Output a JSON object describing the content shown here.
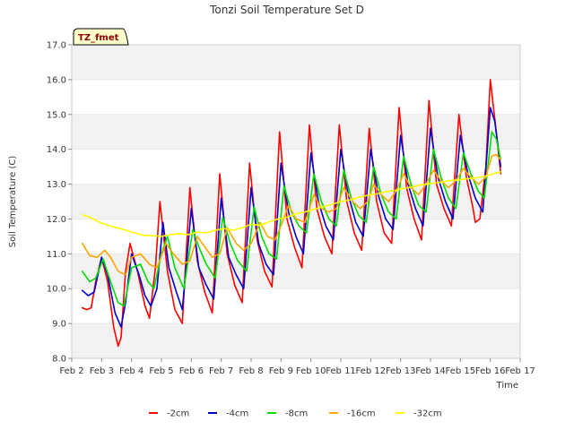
{
  "chart_data": {
    "type": "line",
    "title": "Tonzi Soil Temperature Set D",
    "xlabel": "Time",
    "ylabel": "Soil Temperature (C)",
    "site_label": "TZ_fmet",
    "xlim": [
      2,
      17
    ],
    "ylim": [
      8.0,
      17.0
    ],
    "x_ticks": [
      "Feb 2",
      "Feb 3",
      "Feb 4",
      "Feb 5",
      "Feb 6",
      "Feb 7",
      "Feb 8",
      "Feb 9",
      "Feb 10",
      "Feb 11",
      "Feb 12",
      "Feb 13",
      "Feb 14",
      "Feb 15",
      "Feb 16",
      "Feb 17"
    ],
    "y_ticks": [
      "8.0",
      "9.0",
      "10.0",
      "11.0",
      "12.0",
      "13.0",
      "14.0",
      "15.0",
      "16.0",
      "17.0"
    ],
    "grid": "horizontal bands",
    "legend_position": "bottom",
    "series": [
      {
        "name": "-2cm",
        "color": "#ff0000",
        "x": [
          2.35,
          2.5,
          2.65,
          2.8,
          3.0,
          3.2,
          3.4,
          3.55,
          3.65,
          3.8,
          3.95,
          4.2,
          4.45,
          4.6,
          4.8,
          4.95,
          5.2,
          5.45,
          5.7,
          5.95,
          6.2,
          6.45,
          6.7,
          6.95,
          7.2,
          7.45,
          7.7,
          7.95,
          8.2,
          8.45,
          8.7,
          8.95,
          9.2,
          9.45,
          9.7,
          9.95,
          10.2,
          10.45,
          10.7,
          10.95,
          11.2,
          11.45,
          11.7,
          11.95,
          12.2,
          12.45,
          12.7,
          12.95,
          13.2,
          13.45,
          13.7,
          13.95,
          14.2,
          14.45,
          14.7,
          14.95,
          15.2,
          15.4,
          15.5,
          15.65,
          15.85,
          16.0,
          16.2,
          16.35
        ],
        "y": [
          9.45,
          9.4,
          9.45,
          10.2,
          10.9,
          10.2,
          8.9,
          8.35,
          8.6,
          10.5,
          11.3,
          10.5,
          9.5,
          9.15,
          10.6,
          12.5,
          10.5,
          9.4,
          9.0,
          12.9,
          10.8,
          9.9,
          9.3,
          13.3,
          11.0,
          10.1,
          9.6,
          13.6,
          11.4,
          10.5,
          10.05,
          14.5,
          12.0,
          11.2,
          10.6,
          14.7,
          12.3,
          11.5,
          11.0,
          14.7,
          12.5,
          11.6,
          11.1,
          14.6,
          12.5,
          11.6,
          11.3,
          15.2,
          12.9,
          12.0,
          11.4,
          15.4,
          13.0,
          12.3,
          11.8,
          15.0,
          13.2,
          12.4,
          11.9,
          12.0,
          13.5,
          16.0,
          14.5,
          13.3
        ]
      },
      {
        "name": "-4cm",
        "color": "#0000cc",
        "x": [
          2.35,
          2.55,
          2.75,
          3.0,
          3.2,
          3.45,
          3.65,
          3.8,
          4.0,
          4.25,
          4.45,
          4.65,
          4.85,
          5.05,
          5.25,
          5.5,
          5.7,
          6.0,
          6.25,
          6.5,
          6.75,
          7.0,
          7.25,
          7.5,
          7.75,
          8.0,
          8.25,
          8.5,
          8.75,
          9.0,
          9.25,
          9.5,
          9.75,
          10.0,
          10.25,
          10.5,
          10.75,
          11.0,
          11.25,
          11.5,
          11.75,
          12.0,
          12.25,
          12.5,
          12.75,
          13.0,
          13.25,
          13.5,
          13.75,
          14.0,
          14.25,
          14.5,
          14.75,
          15.0,
          15.25,
          15.5,
          15.75,
          16.0,
          16.15,
          16.35
        ],
        "y": [
          9.95,
          9.8,
          9.9,
          10.9,
          10.4,
          9.3,
          8.9,
          9.6,
          11.0,
          10.4,
          9.8,
          9.5,
          10.0,
          11.9,
          10.6,
          9.9,
          9.4,
          12.3,
          10.6,
          10.1,
          9.7,
          12.6,
          10.9,
          10.4,
          10.0,
          12.9,
          11.3,
          10.7,
          10.4,
          13.6,
          12.2,
          11.5,
          11.0,
          13.9,
          12.5,
          11.8,
          11.4,
          14.0,
          12.7,
          11.9,
          11.5,
          14.0,
          12.7,
          12.0,
          11.7,
          14.4,
          13.0,
          12.3,
          11.8,
          14.6,
          13.2,
          12.5,
          12.0,
          14.4,
          13.3,
          12.6,
          12.2,
          15.2,
          14.8,
          13.5
        ]
      },
      {
        "name": "-8cm",
        "color": "#00dd00",
        "x": [
          2.35,
          2.6,
          2.8,
          3.05,
          3.3,
          3.55,
          3.75,
          4.0,
          4.3,
          4.55,
          4.75,
          5.0,
          5.2,
          5.45,
          5.75,
          6.05,
          6.25,
          6.5,
          6.8,
          7.05,
          7.3,
          7.55,
          7.85,
          8.1,
          8.35,
          8.6,
          8.85,
          9.1,
          9.35,
          9.6,
          9.85,
          10.1,
          10.35,
          10.6,
          10.85,
          11.1,
          11.35,
          11.6,
          11.85,
          12.1,
          12.35,
          12.6,
          12.85,
          13.1,
          13.35,
          13.6,
          13.85,
          14.1,
          14.35,
          14.6,
          14.85,
          15.1,
          15.35,
          15.6,
          15.8,
          16.05,
          16.2,
          16.35
        ],
        "y": [
          10.5,
          10.2,
          10.3,
          10.85,
          10.2,
          9.6,
          9.5,
          10.6,
          10.7,
          10.2,
          10.0,
          11.0,
          11.5,
          10.6,
          10.0,
          11.7,
          11.2,
          10.7,
          10.3,
          12.05,
          11.3,
          10.8,
          10.5,
          12.35,
          11.5,
          11.0,
          10.85,
          12.95,
          12.2,
          11.8,
          11.6,
          13.3,
          12.5,
          12.0,
          11.8,
          13.4,
          12.6,
          12.1,
          11.9,
          13.5,
          12.7,
          12.2,
          12.0,
          13.8,
          13.0,
          12.4,
          12.2,
          14.0,
          13.2,
          12.6,
          12.3,
          13.9,
          13.3,
          12.8,
          12.6,
          14.5,
          14.3,
          13.7
        ]
      },
      {
        "name": "-16cm",
        "color": "#ffa500",
        "x": [
          2.35,
          2.6,
          2.85,
          3.1,
          3.3,
          3.55,
          3.8,
          4.0,
          4.3,
          4.6,
          4.85,
          5.15,
          5.4,
          5.7,
          5.95,
          6.2,
          6.45,
          6.7,
          6.95,
          7.2,
          7.5,
          7.75,
          8.0,
          8.3,
          8.55,
          8.8,
          9.0,
          9.25,
          9.5,
          9.8,
          10.1,
          10.35,
          10.6,
          10.85,
          11.1,
          11.4,
          11.65,
          11.9,
          12.1,
          12.35,
          12.6,
          12.85,
          13.1,
          13.35,
          13.6,
          13.85,
          14.1,
          14.35,
          14.6,
          14.85,
          15.1,
          15.35,
          15.6,
          15.85,
          16.05,
          16.2,
          16.35
        ],
        "y": [
          11.3,
          10.95,
          10.9,
          11.1,
          10.9,
          10.5,
          10.4,
          10.9,
          11.0,
          10.7,
          10.6,
          11.3,
          11.0,
          10.7,
          10.8,
          11.5,
          11.2,
          10.9,
          11.0,
          11.75,
          11.3,
          11.1,
          11.3,
          11.9,
          11.5,
          11.4,
          11.8,
          12.4,
          12.0,
          11.9,
          12.7,
          12.3,
          12.2,
          12.3,
          12.9,
          12.5,
          12.3,
          12.5,
          13.0,
          12.7,
          12.5,
          12.8,
          13.3,
          12.9,
          12.7,
          13.0,
          13.4,
          13.1,
          12.9,
          13.1,
          13.45,
          13.2,
          13.0,
          13.2,
          13.8,
          13.85,
          13.7
        ]
      },
      {
        "name": "-32cm",
        "color": "#ffff00",
        "x": [
          2.35,
          2.6,
          2.9,
          3.2,
          3.5,
          3.8,
          4.1,
          4.4,
          4.7,
          5.0,
          5.3,
          5.6,
          5.9,
          6.2,
          6.5,
          6.8,
          7.1,
          7.4,
          7.7,
          8.0,
          8.3,
          8.6,
          8.9,
          9.2,
          9.5,
          9.8,
          10.1,
          10.4,
          10.7,
          11.0,
          11.3,
          11.6,
          11.9,
          12.2,
          12.5,
          12.8,
          13.1,
          13.4,
          13.7,
          14.0,
          14.3,
          14.6,
          14.9,
          15.2,
          15.5,
          15.8,
          16.1,
          16.35
        ],
        "y": [
          12.12,
          12.05,
          11.92,
          11.82,
          11.75,
          11.68,
          11.6,
          11.53,
          11.52,
          11.5,
          11.55,
          11.58,
          11.55,
          11.62,
          11.6,
          11.68,
          11.72,
          11.68,
          11.75,
          11.85,
          11.82,
          11.92,
          12.0,
          12.05,
          12.15,
          12.2,
          12.28,
          12.35,
          12.42,
          12.5,
          12.55,
          12.62,
          12.68,
          12.72,
          12.78,
          12.82,
          12.88,
          12.92,
          12.98,
          13.02,
          13.05,
          13.1,
          13.12,
          13.15,
          13.18,
          13.22,
          13.3,
          13.35
        ]
      }
    ]
  }
}
